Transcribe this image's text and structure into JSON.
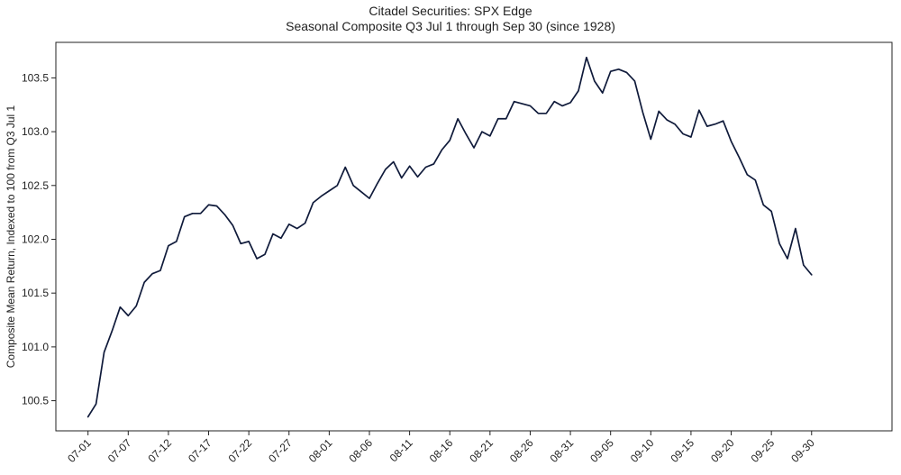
{
  "chart_data": {
    "type": "line",
    "title": "Citadel Securities: SPX Edge",
    "subtitle": "Seasonal Composite Q3 Jul 1 through Sep 30 (since 1928)",
    "xlabel": "",
    "ylabel": "Composite Mean Return, Indexed to 100 from Q3 Jul 1",
    "ylim": [
      100.22,
      103.83
    ],
    "yticks": [
      100.5,
      101.0,
      101.5,
      102.0,
      102.5,
      103.0,
      103.5
    ],
    "ytick_labels": [
      "100.5",
      "101.0",
      "101.5",
      "102.0",
      "102.5",
      "103.0",
      "103.5"
    ],
    "xticks": [
      0,
      5,
      10,
      15,
      20,
      25,
      30,
      35,
      40,
      45,
      50,
      55,
      60,
      65,
      70,
      75,
      80,
      85,
      90
    ],
    "xtick_labels": [
      "07-01",
      "07-07",
      "07-12",
      "07-17",
      "07-22",
      "07-27",
      "08-01",
      "08-06",
      "08-11",
      "08-16",
      "08-21",
      "08-26",
      "08-31",
      "09-05",
      "09-10",
      "09-15",
      "09-20",
      "09-25",
      "09-30"
    ],
    "xlim": [
      -4,
      100
    ],
    "grid": false,
    "color": "#0f1a3a",
    "series": [
      {
        "name": "Composite",
        "values": [
          100.35,
          100.47,
          100.95,
          101.15,
          101.37,
          101.29,
          101.38,
          101.6,
          101.68,
          101.71,
          101.94,
          101.98,
          102.21,
          102.24,
          102.24,
          102.32,
          102.31,
          102.23,
          102.13,
          101.96,
          101.98,
          101.82,
          101.86,
          102.05,
          102.01,
          102.14,
          102.1,
          102.15,
          102.34,
          102.4,
          102.45,
          102.5,
          102.67,
          102.5,
          102.44,
          102.38,
          102.52,
          102.65,
          102.72,
          102.57,
          102.68,
          102.58,
          102.67,
          102.7,
          102.83,
          102.92,
          103.12,
          102.98,
          102.85,
          103.0,
          102.96,
          103.12,
          103.12,
          103.28,
          103.26,
          103.24,
          103.17,
          103.17,
          103.28,
          103.24,
          103.27,
          103.38,
          103.69,
          103.47,
          103.36,
          103.56,
          103.58,
          103.55,
          103.47,
          103.18,
          102.93,
          103.19,
          103.11,
          103.07,
          102.98,
          102.95,
          103.2,
          103.05,
          103.07,
          103.1,
          102.91,
          102.76,
          102.6,
          102.55,
          102.32,
          102.26,
          101.96,
          101.82,
          102.1,
          101.76,
          101.67
        ]
      }
    ]
  }
}
